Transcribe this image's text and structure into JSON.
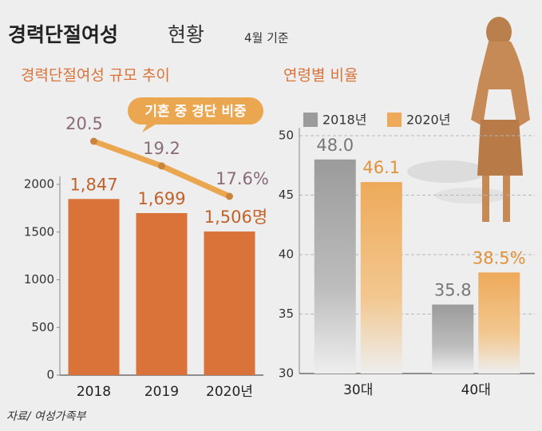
{
  "header": {
    "title": "경력단절여성",
    "title_suffix": "현황",
    "note": "4월 기준"
  },
  "chart_data": [
    {
      "type": "bar",
      "title": "경력단절여성 규모 추이",
      "categories": [
        "2018",
        "2019",
        "2020년"
      ],
      "series": [
        {
          "type": "bar",
          "color": "#d9733a",
          "values": [
            1847,
            1699,
            1506
          ],
          "value_labels": [
            "1,847",
            "1,699",
            "1,506명"
          ]
        },
        {
          "type": "line",
          "name": "기혼 중 경단 비중",
          "color": "#eba650",
          "values": [
            20.5,
            19.2,
            17.6
          ],
          "value_labels": [
            "20.5",
            "19.2",
            "17.6%"
          ]
        }
      ],
      "ylim": [
        0,
        2000
      ],
      "yticks": [
        0,
        500,
        1000,
        1500,
        2000
      ],
      "grid": false
    },
    {
      "type": "bar",
      "title": "연령별 비율",
      "categories": [
        "30대",
        "40대"
      ],
      "series": [
        {
          "name": "2018년",
          "color": "#9b9b9b",
          "values": [
            48.0,
            35.8
          ],
          "value_labels": [
            "48.0",
            "35.8"
          ]
        },
        {
          "name": "2020년",
          "color": "#eeaa5a",
          "values": [
            46.1,
            38.5
          ],
          "value_labels": [
            "46.1",
            "38.5%"
          ]
        }
      ],
      "ylim": [
        30,
        50
      ],
      "yticks": [
        30,
        35,
        40,
        45,
        50
      ],
      "grid": true,
      "legend": "top"
    }
  ],
  "source": "자료/ 여성가족부"
}
